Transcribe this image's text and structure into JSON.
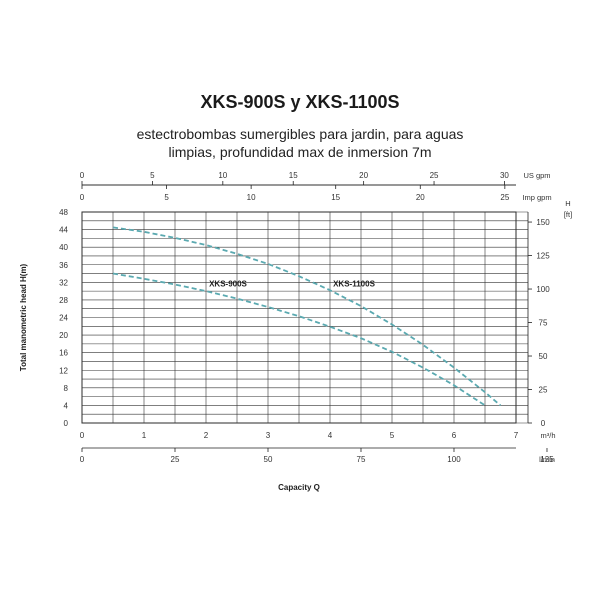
{
  "chart_data": {
    "type": "line",
    "title": "XKS-900S y XKS-1100S",
    "subtitle_line1": "estectrobombas sumergibles para jardin, para aguas",
    "subtitle_line2": "limpias, profundidad max de inmersion 7m",
    "xlabel": "Capacity Q",
    "ylabel": "Total manometric head H(m)",
    "xlim": [
      0,
      7
    ],
    "ylim": [
      0,
      48
    ],
    "grid": true,
    "x_ticks": [
      "0",
      "1",
      "2",
      "3",
      "4",
      "5",
      "6",
      "7"
    ],
    "x_unit": "m³/h",
    "y_ticks": [
      "0",
      "4",
      "8",
      "12",
      "16",
      "20",
      "24",
      "28",
      "32",
      "36",
      "40",
      "44",
      "48"
    ],
    "top_axis_usgpm": {
      "unit": "US  gpm",
      "ticks": [
        "0",
        "5",
        "10",
        "15",
        "20",
        "25",
        "30"
      ],
      "max_value": 30.82
    },
    "top_axis_impgpm": {
      "unit": "Imp  gpm",
      "ticks": [
        "0",
        "5",
        "10",
        "15",
        "20",
        "25"
      ],
      "max_value": 25.66
    },
    "bottom_axis_lmin": {
      "unit": "l/min",
      "ticks": [
        "0",
        "25",
        "50",
        "75",
        "100",
        "125"
      ],
      "max_value": 116.67
    },
    "right_axis_ft": {
      "unit_top": "H",
      "unit_bottom": "[ft]",
      "ticks": [
        "0",
        "25",
        "50",
        "75",
        "100",
        "125",
        "150"
      ],
      "max_value": 157.5
    },
    "series": [
      {
        "name": "XKS-900S",
        "color": "#5aa9b0",
        "x": [
          0.5,
          1.0,
          1.5,
          2.0,
          2.5,
          3.0,
          3.5,
          4.0,
          4.5,
          5.0,
          5.5,
          6.0,
          6.5
        ],
        "y": [
          34.0,
          32.8,
          31.5,
          30.0,
          28.3,
          26.4,
          24.3,
          21.9,
          19.3,
          16.2,
          12.6,
          8.6,
          4.0
        ]
      },
      {
        "name": "XKS-1100S",
        "color": "#5aa9b0",
        "x": [
          0.5,
          1.0,
          1.5,
          2.0,
          2.5,
          3.0,
          3.5,
          4.0,
          4.5,
          5.0,
          5.5,
          6.0,
          6.5,
          6.75
        ],
        "y": [
          44.5,
          43.5,
          42.1,
          40.5,
          38.5,
          36.2,
          33.4,
          30.2,
          26.6,
          22.4,
          17.8,
          12.6,
          7.0,
          4.0
        ]
      }
    ]
  }
}
